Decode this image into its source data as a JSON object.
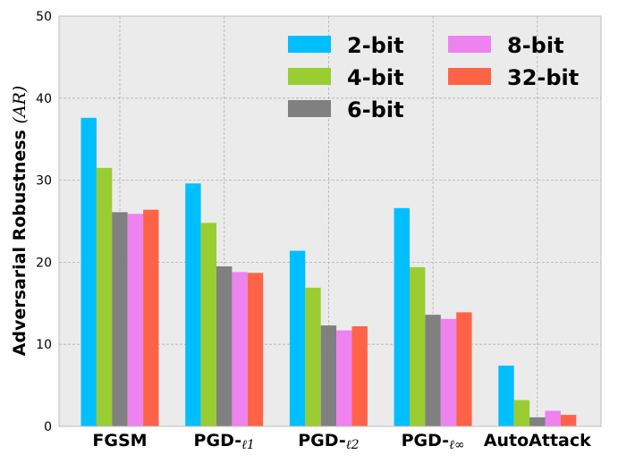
{
  "chart_data": {
    "type": "bar",
    "categories": [
      "FGSM",
      "PGD-",
      "PGD-",
      "PGD-",
      "AutoAttack"
    ],
    "category_subscripts": [
      "",
      "ℓ1",
      "ℓ2",
      "ℓ∞",
      ""
    ],
    "ylabel": "Adversarial Robustness",
    "ylabel_symbol": "(AR)",
    "xlabel": "",
    "ylim": [
      0,
      50
    ],
    "yticks": [
      "0",
      "10",
      "20",
      "30",
      "40",
      "50"
    ],
    "grid": true,
    "legend_placement": "top-right",
    "series": [
      {
        "name": "2-bit",
        "color": "#00bfff",
        "values": [
          37.6,
          29.6,
          21.4,
          26.6,
          7.4
        ]
      },
      {
        "name": "4-bit",
        "color": "#9acd32",
        "values": [
          31.5,
          24.8,
          16.9,
          19.4,
          3.2
        ]
      },
      {
        "name": "6-bit",
        "color": "#808080",
        "values": [
          26.1,
          19.5,
          12.3,
          13.6,
          1.1
        ]
      },
      {
        "name": "8-bit",
        "color": "#ee82ee",
        "values": [
          25.9,
          18.8,
          11.7,
          13.1,
          1.9
        ]
      },
      {
        "name": "32-bit",
        "color": "#ff6347",
        "values": [
          26.4,
          18.7,
          12.2,
          13.9,
          1.4
        ]
      }
    ]
  }
}
